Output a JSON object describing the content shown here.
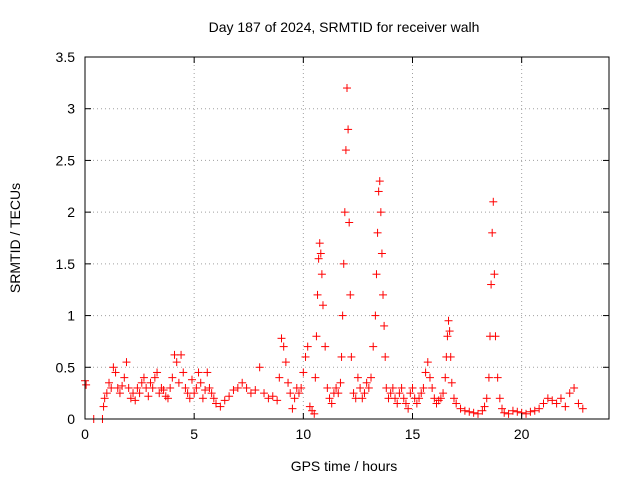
{
  "chart_data": {
    "type": "scatter",
    "title": "Day 187 of 2024, SRMTID for receiver walh",
    "xlabel": "GPS time / hours",
    "ylabel": "SRMTID / TECUs",
    "xlim": [
      0,
      24
    ],
    "ylim": [
      0,
      3.5
    ],
    "xticks": [
      0,
      5,
      10,
      15,
      20
    ],
    "xtick_labels": [
      "0",
      "5",
      "10",
      "15",
      "20"
    ],
    "yticks": [
      0,
      0.5,
      1,
      1.5,
      2,
      2.5,
      3,
      3.5
    ],
    "ytick_labels": [
      "0",
      "0.5",
      "1",
      "1.5",
      "2",
      "2.5",
      "3",
      "3.5"
    ],
    "grid": true,
    "marker": "+",
    "color": "#ff0000",
    "series": [
      {
        "name": "SRMTID",
        "x": [
          0.0,
          0.05,
          0.4,
          0.8,
          0.85,
          0.9,
          1.0,
          1.1,
          1.2,
          1.3,
          1.4,
          1.5,
          1.6,
          1.7,
          1.8,
          1.9,
          2.0,
          2.1,
          2.2,
          2.3,
          2.4,
          2.5,
          2.6,
          2.7,
          2.8,
          2.9,
          3.0,
          3.1,
          3.2,
          3.3,
          3.4,
          3.5,
          3.6,
          3.7,
          3.8,
          3.9,
          4.0,
          4.1,
          4.2,
          4.3,
          4.4,
          4.5,
          4.6,
          4.7,
          4.8,
          4.9,
          5.0,
          5.1,
          5.2,
          5.3,
          5.4,
          5.5,
          5.6,
          5.7,
          5.8,
          5.9,
          6.0,
          6.2,
          6.4,
          6.6,
          6.8,
          7.0,
          7.2,
          7.4,
          7.6,
          7.8,
          8.0,
          8.2,
          8.4,
          8.6,
          8.8,
          8.9,
          9.0,
          9.1,
          9.2,
          9.3,
          9.4,
          9.5,
          9.6,
          9.7,
          9.8,
          9.9,
          10.0,
          10.1,
          10.2,
          10.3,
          10.4,
          10.5,
          10.55,
          10.6,
          10.65,
          10.7,
          10.75,
          10.8,
          10.85,
          10.9,
          11.0,
          11.1,
          11.2,
          11.3,
          11.4,
          11.5,
          11.6,
          11.7,
          11.75,
          11.8,
          11.85,
          11.9,
          11.95,
          12.0,
          12.05,
          12.1,
          12.15,
          12.2,
          12.3,
          12.4,
          12.5,
          12.6,
          12.7,
          12.8,
          12.9,
          13.0,
          13.1,
          13.2,
          13.3,
          13.35,
          13.4,
          13.45,
          13.5,
          13.55,
          13.6,
          13.65,
          13.7,
          13.75,
          13.8,
          13.9,
          14.0,
          14.1,
          14.2,
          14.3,
          14.4,
          14.5,
          14.6,
          14.7,
          14.8,
          14.9,
          15.0,
          15.1,
          15.2,
          15.3,
          15.4,
          15.5,
          15.6,
          15.7,
          15.8,
          15.9,
          16.0,
          16.1,
          16.2,
          16.3,
          16.4,
          16.5,
          16.55,
          16.6,
          16.65,
          16.7,
          16.75,
          16.8,
          16.9,
          17.0,
          17.2,
          17.4,
          17.6,
          17.8,
          18.0,
          18.2,
          18.3,
          18.4,
          18.5,
          18.55,
          18.6,
          18.65,
          18.7,
          18.75,
          18.8,
          18.9,
          19.0,
          19.1,
          19.2,
          19.4,
          19.6,
          19.8,
          20.0,
          20.2,
          20.4,
          20.6,
          20.8,
          21.0,
          21.2,
          21.4,
          21.6,
          21.8,
          22.0,
          22.2,
          22.4,
          22.6,
          22.8
        ],
        "y": [
          0.37,
          0.33,
          0.0,
          0.0,
          0.12,
          0.2,
          0.25,
          0.35,
          0.3,
          0.5,
          0.45,
          0.3,
          0.25,
          0.32,
          0.4,
          0.55,
          0.3,
          0.2,
          0.25,
          0.18,
          0.3,
          0.25,
          0.35,
          0.4,
          0.3,
          0.22,
          0.35,
          0.3,
          0.4,
          0.45,
          0.25,
          0.3,
          0.28,
          0.22,
          0.2,
          0.3,
          0.4,
          0.62,
          0.55,
          0.35,
          0.62,
          0.45,
          0.3,
          0.25,
          0.2,
          0.38,
          0.25,
          0.3,
          0.45,
          0.35,
          0.2,
          0.28,
          0.45,
          0.3,
          0.25,
          0.2,
          0.15,
          0.12,
          0.18,
          0.22,
          0.28,
          0.3,
          0.35,
          0.3,
          0.25,
          0.28,
          0.5,
          0.25,
          0.2,
          0.22,
          0.18,
          0.4,
          0.78,
          0.7,
          0.55,
          0.35,
          0.25,
          0.1,
          0.2,
          0.3,
          0.25,
          0.3,
          0.45,
          0.6,
          0.7,
          0.12,
          0.08,
          0.05,
          0.4,
          0.8,
          1.2,
          1.55,
          1.7,
          1.6,
          1.4,
          1.1,
          0.7,
          0.3,
          0.2,
          0.15,
          0.25,
          0.3,
          0.25,
          0.35,
          0.6,
          1.0,
          1.5,
          2.0,
          2.6,
          3.2,
          2.8,
          1.9,
          1.2,
          0.6,
          0.25,
          0.2,
          0.4,
          0.3,
          0.2,
          0.25,
          0.35,
          0.3,
          0.4,
          0.7,
          1.0,
          1.4,
          1.8,
          2.2,
          2.3,
          2.0,
          1.6,
          1.2,
          0.9,
          0.6,
          0.3,
          0.2,
          0.25,
          0.3,
          0.2,
          0.15,
          0.25,
          0.3,
          0.2,
          0.15,
          0.1,
          0.25,
          0.3,
          0.2,
          0.15,
          0.2,
          0.25,
          0.3,
          0.45,
          0.55,
          0.4,
          0.3,
          0.2,
          0.15,
          0.18,
          0.2,
          0.25,
          0.4,
          0.6,
          0.8,
          0.95,
          0.85,
          0.6,
          0.35,
          0.2,
          0.15,
          0.1,
          0.08,
          0.07,
          0.06,
          0.05,
          0.08,
          0.12,
          0.2,
          0.4,
          0.8,
          1.3,
          1.8,
          2.1,
          1.4,
          0.8,
          0.4,
          0.2,
          0.1,
          0.06,
          0.05,
          0.08,
          0.07,
          0.06,
          0.05,
          0.07,
          0.08,
          0.1,
          0.15,
          0.2,
          0.18,
          0.15,
          0.2,
          0.12,
          0.25,
          0.3,
          0.15,
          0.1
        ]
      }
    ]
  }
}
